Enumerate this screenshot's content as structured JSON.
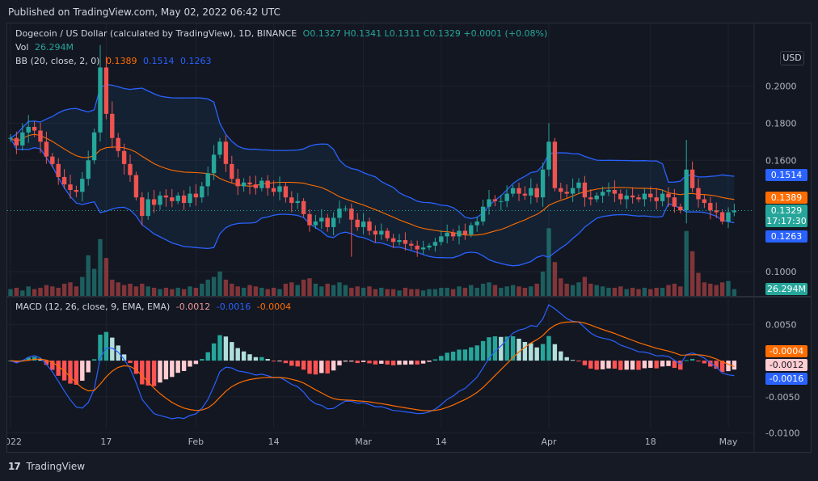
{
  "header": {
    "published": "Published on TradingView.com, May 02, 2022 06:42 UTC"
  },
  "legend": {
    "title": "Dogecoin / US Dollar (calculated by TradingView), 1D, BINANCE",
    "ohlc": "O0.1327  H0.1341  L0.1311  C0.1329  +0.0001 (+0.08%)",
    "vol_label": "Vol",
    "vol_value": "26.294M",
    "bb_label": "BB (20, close, 2, 0)",
    "bb_mid": "0.1389",
    "bb_upper": "0.1514",
    "bb_lower": "0.1263",
    "macd_label": "MACD (12, 26, close, 9, EMA, EMA)",
    "macd_hist": "-0.0012",
    "macd_line": "-0.0016",
    "macd_signal": "-0.0004"
  },
  "currency_button": "USD",
  "price_tags": {
    "bb_upper": "0.1514",
    "bb_mid": "0.1389",
    "last": "0.1329",
    "countdown": "17:17:30",
    "bb_lower": "0.1263",
    "volume": "26.294M"
  },
  "macd_tags": {
    "signal": "-0.0004",
    "hist": "-0.0012",
    "macd": "-0.0016"
  },
  "footer": {
    "logo": "17",
    "brand": "TradingView"
  },
  "colors": {
    "up": "#26a69a",
    "down": "#ef5350",
    "bb": "#2962ff",
    "basis": "#ff6d00",
    "macd": "#2962ff",
    "signal": "#ff6d00"
  },
  "chart_data": [
    {
      "type": "candlestick",
      "price_axis_ticks": [
        "0.2000",
        "0.1800",
        "0.1600",
        "0.1000"
      ],
      "ylim": [
        0.09,
        0.225
      ],
      "x_tick_labels": [
        "2022",
        "17",
        "Feb",
        "14",
        "Mar",
        "14",
        "Apr",
        "18",
        "May"
      ],
      "x_tick_days": [
        0,
        16,
        31,
        44,
        59,
        72,
        90,
        107,
        120
      ],
      "start_close": 0.172,
      "closes": [
        0.172,
        0.168,
        0.175,
        0.178,
        0.176,
        0.17,
        0.162,
        0.158,
        0.151,
        0.147,
        0.144,
        0.143,
        0.15,
        0.16,
        0.175,
        0.21,
        0.185,
        0.172,
        0.165,
        0.158,
        0.152,
        0.14,
        0.13,
        0.139,
        0.136,
        0.141,
        0.14,
        0.138,
        0.141,
        0.137,
        0.142,
        0.14,
        0.146,
        0.153,
        0.163,
        0.17,
        0.158,
        0.15,
        0.146,
        0.148,
        0.147,
        0.145,
        0.149,
        0.145,
        0.143,
        0.146,
        0.14,
        0.137,
        0.138,
        0.131,
        0.125,
        0.127,
        0.129,
        0.124,
        0.129,
        0.134,
        0.134,
        0.128,
        0.124,
        0.127,
        0.122,
        0.12,
        0.122,
        0.118,
        0.116,
        0.117,
        0.115,
        0.114,
        0.112,
        0.113,
        0.114,
        0.116,
        0.119,
        0.121,
        0.119,
        0.122,
        0.12,
        0.125,
        0.127,
        0.135,
        0.139,
        0.138,
        0.138,
        0.142,
        0.145,
        0.142,
        0.141,
        0.145,
        0.14,
        0.155,
        0.17,
        0.145,
        0.143,
        0.142,
        0.145,
        0.148,
        0.14,
        0.139,
        0.141,
        0.143,
        0.144,
        0.142,
        0.139,
        0.141,
        0.14,
        0.139,
        0.142,
        0.14,
        0.138,
        0.142,
        0.14,
        0.135,
        0.133,
        0.155,
        0.145,
        0.139,
        0.137,
        0.133,
        0.132,
        0.127,
        0.132,
        0.1329
      ],
      "volumes": [
        0.05,
        0.06,
        0.04,
        0.07,
        0.05,
        0.06,
        0.08,
        0.07,
        0.06,
        0.09,
        0.1,
        0.07,
        0.14,
        0.3,
        0.2,
        0.42,
        0.28,
        0.12,
        0.1,
        0.08,
        0.09,
        0.07,
        0.09,
        0.07,
        0.06,
        0.05,
        0.06,
        0.05,
        0.06,
        0.05,
        0.07,
        0.06,
        0.09,
        0.12,
        0.14,
        0.18,
        0.12,
        0.09,
        0.07,
        0.06,
        0.08,
        0.07,
        0.06,
        0.05,
        0.06,
        0.05,
        0.09,
        0.1,
        0.08,
        0.12,
        0.13,
        0.09,
        0.07,
        0.09,
        0.08,
        0.1,
        0.08,
        0.06,
        0.07,
        0.06,
        0.07,
        0.05,
        0.06,
        0.05,
        0.05,
        0.04,
        0.06,
        0.05,
        0.05,
        0.04,
        0.05,
        0.05,
        0.06,
        0.06,
        0.05,
        0.07,
        0.06,
        0.08,
        0.06,
        0.09,
        0.1,
        0.08,
        0.06,
        0.07,
        0.08,
        0.07,
        0.06,
        0.07,
        0.09,
        0.18,
        0.5,
        0.25,
        0.13,
        0.09,
        0.08,
        0.1,
        0.14,
        0.09,
        0.08,
        0.07,
        0.06,
        0.06,
        0.07,
        0.05,
        0.06,
        0.05,
        0.06,
        0.05,
        0.06,
        0.06,
        0.08,
        0.09,
        0.07,
        0.48,
        0.33,
        0.17,
        0.1,
        0.09,
        0.08,
        0.1,
        0.11,
        0.05
      ],
      "bb_last": {
        "upper": 0.1514,
        "basis": 0.1389,
        "lower": 0.1263
      }
    },
    {
      "type": "macd",
      "axis_ticks": [
        "0.0050",
        "-0.0050",
        "-0.0100"
      ],
      "ylim": [
        -0.0115,
        0.0075
      ],
      "fast": 12,
      "slow": 26,
      "signal": 9
    }
  ]
}
